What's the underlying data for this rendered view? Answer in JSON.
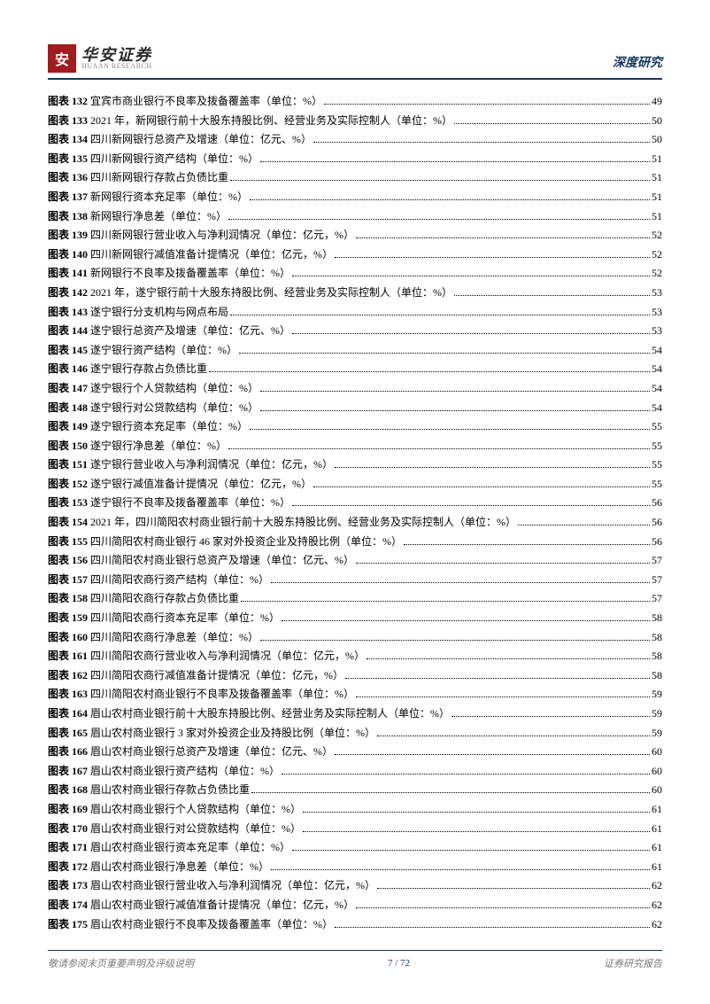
{
  "header": {
    "logo_cn": "华安证券",
    "logo_en": "HUAAN RESEARCH",
    "right_label": "深度研究"
  },
  "toc_prefix": "图表",
  "toc": [
    {
      "num": "132",
      "title": "宜宾市商业银行不良率及拨备覆盖率（单位：%）",
      "page": "49"
    },
    {
      "num": "133",
      "title": "2021 年，新网银行前十大股东持股比例、经营业务及实际控制人（单位：%）",
      "page": "50"
    },
    {
      "num": "134",
      "title": "四川新网银行总资产及增速（单位：亿元、%）",
      "page": "50"
    },
    {
      "num": "135",
      "title": "四川新网银行资产结构（单位：%）",
      "page": "51"
    },
    {
      "num": "136",
      "title": "四川新网银行存款占负债比重",
      "page": "51"
    },
    {
      "num": "137",
      "title": "新网银行资本充足率（单位：%）",
      "page": "51"
    },
    {
      "num": "138",
      "title": "新网银行净息差（单位：%）",
      "page": "51"
    },
    {
      "num": "139",
      "title": "四川新网银行营业收入与净利润情况（单位：亿元，%）",
      "page": "52"
    },
    {
      "num": "140",
      "title": "四川新网银行减值准备计提情况（单位：亿元，%）",
      "page": "52"
    },
    {
      "num": "141",
      "title": "新网银行不良率及拨备覆盖率（单位：%）",
      "page": "52"
    },
    {
      "num": "142",
      "title": "2021 年，遂宁银行前十大股东持股比例、经营业务及实际控制人（单位：%）",
      "page": "53"
    },
    {
      "num": "143",
      "title": "遂宁银行分支机构与网点布局",
      "page": "53"
    },
    {
      "num": "144",
      "title": "遂宁银行总资产及增速（单位：亿元、%）",
      "page": "53"
    },
    {
      "num": "145",
      "title": "遂宁银行资产结构（单位：%）",
      "page": "54"
    },
    {
      "num": "146",
      "title": "遂宁银行存款占负债比重",
      "page": "54"
    },
    {
      "num": "147",
      "title": "遂宁银行个人贷款结构（单位：%）",
      "page": "54"
    },
    {
      "num": "148",
      "title": "遂宁银行对公贷款结构（单位：%）",
      "page": "54"
    },
    {
      "num": "149",
      "title": "遂宁银行资本充足率（单位：%）",
      "page": "55"
    },
    {
      "num": "150",
      "title": "遂宁银行净息差（单位：%）",
      "page": "55"
    },
    {
      "num": "151",
      "title": "遂宁银行营业收入与净利润情况（单位：亿元，%）",
      "page": "55"
    },
    {
      "num": "152",
      "title": "遂宁银行减值准备计提情况（单位：亿元，%）",
      "page": "55"
    },
    {
      "num": "153",
      "title": "遂宁银行不良率及拨备覆盖率（单位：%）",
      "page": "56"
    },
    {
      "num": "154",
      "title": "2021 年，四川简阳农村商业银行前十大股东持股比例、经营业务及实际控制人（单位：%）",
      "page": "56"
    },
    {
      "num": "155",
      "title": "四川简阳农村商业银行 46 家对外投资企业及持股比例（单位：%）",
      "page": "56"
    },
    {
      "num": "156",
      "title": "四川简阳农村商业银行总资产及增速（单位：亿元、%）",
      "page": "57"
    },
    {
      "num": "157",
      "title": "四川简阳农商行资产结构（单位：%）",
      "page": "57"
    },
    {
      "num": "158",
      "title": "四川简阳农商行存款占负债比重",
      "page": "57"
    },
    {
      "num": "159",
      "title": "四川简阳农商行资本充足率（单位：%）",
      "page": "58"
    },
    {
      "num": "160",
      "title": "四川简阳农商行净息差（单位：%）",
      "page": "58"
    },
    {
      "num": "161",
      "title": "四川简阳农商行营业收入与净利润情况（单位：亿元，%）",
      "page": "58"
    },
    {
      "num": "162",
      "title": "四川简阳农商行减值准备计提情况（单位：亿元，%）",
      "page": "58"
    },
    {
      "num": "163",
      "title": "四川简阳农村商业银行不良率及拨备覆盖率（单位：%）",
      "page": "59"
    },
    {
      "num": "164",
      "title": "眉山农村商业银行前十大股东持股比例、经营业务及实际控制人（单位：%）",
      "page": "59"
    },
    {
      "num": "165",
      "title": "眉山农村商业银行 3 家对外投资企业及持股比例（单位：%）",
      "page": "59"
    },
    {
      "num": "166",
      "title": "眉山农村商业银行总资产及增速（单位：亿元、%）",
      "page": "60"
    },
    {
      "num": "167",
      "title": "眉山农村商业银行资产结构（单位：%）",
      "page": "60"
    },
    {
      "num": "168",
      "title": "眉山农村商业银行存款占负债比重",
      "page": "60"
    },
    {
      "num": "169",
      "title": "眉山农村商业银行个人贷款结构（单位：%）",
      "page": "61"
    },
    {
      "num": "170",
      "title": "眉山农村商业银行对公贷款结构（单位：%）",
      "page": "61"
    },
    {
      "num": "171",
      "title": "眉山农村商业银行资本充足率（单位：%）",
      "page": "61"
    },
    {
      "num": "172",
      "title": "眉山农村商业银行净息差（单位：%）",
      "page": "61"
    },
    {
      "num": "173",
      "title": "眉山农村商业银行营业收入与净利润情况（单位：亿元，%）",
      "page": "62"
    },
    {
      "num": "174",
      "title": "眉山农村商业银行减值准备计提情况（单位：亿元，%）",
      "page": "62"
    },
    {
      "num": "175",
      "title": "眉山农村商业银行不良率及拨备覆盖率（单位：%）",
      "page": "62"
    }
  ],
  "footer": {
    "left": "敬请参阅末页重要声明及评级说明",
    "center": "7 / 72",
    "right": "证券研究报告"
  }
}
